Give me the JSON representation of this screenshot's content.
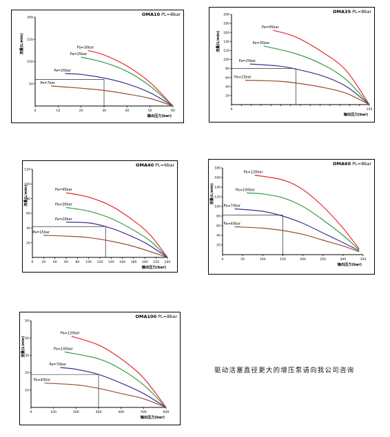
{
  "note": "驱动活塞直径更大的增压泵请向我公司咨询",
  "colors": {
    "red": "#e32a2a",
    "green": "#2f9b46",
    "blue": "#3b2e8c",
    "brown": "#9a4a2e"
  },
  "chart_data": [
    {
      "type": "line",
      "title": "OMA10",
      "subtitle": "PL=8bar",
      "xlabel": "输出压力(bar)",
      "ylabel": "流量(L/min)",
      "xlim": [
        0,
        60
      ],
      "ylim": [
        0,
        200
      ],
      "xticks": [
        "0",
        "10",
        "20",
        "30",
        "40",
        "50",
        "60"
      ],
      "yticks": [
        "50",
        "100",
        "150",
        "200"
      ],
      "series": [
        {
          "name": "Pa=30bar",
          "color": "red",
          "x": [
            23,
            30,
            40,
            50,
            60
          ],
          "y": [
            125,
            115,
            90,
            53,
            0
          ]
        },
        {
          "name": "Pa=25bar",
          "color": "green",
          "x": [
            20,
            30,
            40,
            50,
            60
          ],
          "y": [
            110,
            98,
            78,
            45,
            0
          ]
        },
        {
          "name": "Pa=20bar",
          "color": "blue",
          "x": [
            13,
            20,
            30,
            40,
            50,
            60
          ],
          "y": [
            73,
            71,
            63,
            50,
            30,
            0
          ]
        },
        {
          "name": "Pa=7bar",
          "color": "brown",
          "x": [
            7,
            20,
            30,
            40,
            50,
            60
          ],
          "y": [
            45,
            40,
            35,
            27,
            17,
            0
          ]
        }
      ],
      "guide": {
        "x": 30,
        "y": 60
      }
    },
    {
      "type": "line",
      "title": "OMA35",
      "subtitle": "PL=8bar",
      "xlabel": "输出压力(bar)",
      "ylabel": "流量(L/min)",
      "xlim": [
        0,
        150
      ],
      "ylim": [
        0,
        200
      ],
      "xticks": [
        "0",
        "",
        "",
        "",
        "",
        "",
        "",
        "",
        "",
        "",
        "",
        "",
        "",
        "",
        "150"
      ],
      "yticks": [
        "20",
        "40",
        "60",
        "80",
        "100",
        "120",
        "140",
        "160",
        "180",
        "200"
      ],
      "series": [
        {
          "name": "Pa=45bar",
          "color": "red",
          "x": [
            45,
            70,
            100,
            125,
            150
          ],
          "y": [
            165,
            150,
            115,
            75,
            0
          ]
        },
        {
          "name": "Pa=35bar",
          "color": "green",
          "x": [
            35,
            70,
            100,
            125,
            150
          ],
          "y": [
            130,
            113,
            88,
            55,
            0
          ]
        },
        {
          "name": "Pa=20bar",
          "color": "blue",
          "x": [
            20,
            50,
            70,
            100,
            125,
            150
          ],
          "y": [
            90,
            86,
            79,
            63,
            40,
            0
          ]
        },
        {
          "name": "Pa=15bar",
          "color": "brown",
          "x": [
            15,
            50,
            70,
            100,
            125,
            150
          ],
          "y": [
            54,
            52,
            48,
            38,
            25,
            0
          ]
        }
      ],
      "guide": {
        "x": 70,
        "y": 80
      }
    },
    {
      "type": "line",
      "title": "OMA40",
      "subtitle": "PL=6bar",
      "xlabel": "输出压力(bar)",
      "ylabel": "流量(L/min)",
      "xlim": [
        0,
        240
      ],
      "ylim": [
        0,
        120
      ],
      "xticks": [
        "0",
        "20",
        "40",
        "60",
        "80",
        "100",
        "120",
        "140",
        "160",
        "180",
        "200",
        "220",
        "240"
      ],
      "yticks": [
        "20",
        "40",
        "60",
        "80",
        "100",
        "120"
      ],
      "series": [
        {
          "name": "Pa=45bar",
          "color": "red",
          "x": [
            60,
            100,
            140,
            180,
            210,
            240
          ],
          "y": [
            88,
            82,
            70,
            50,
            30,
            0
          ]
        },
        {
          "name": "Pa=30bar",
          "color": "green",
          "x": [
            60,
            100,
            140,
            180,
            210,
            240
          ],
          "y": [
            68,
            63,
            53,
            37,
            22,
            0
          ]
        },
        {
          "name": "Pa=20bar",
          "color": "blue",
          "x": [
            60,
            100,
            130,
            160,
            200,
            240
          ],
          "y": [
            48,
            47,
            42,
            34,
            20,
            0
          ]
        },
        {
          "name": "Pa=15bar",
          "color": "brown",
          "x": [
            20,
            60,
            100,
            140,
            180,
            240
          ],
          "y": [
            30,
            29,
            27,
            22,
            15,
            0
          ]
        }
      ],
      "guide": {
        "x": 130,
        "y": 42
      }
    },
    {
      "type": "line",
      "title": "OMA60",
      "subtitle": "PL=8bar",
      "xlabel": "输出压力(bar)",
      "ylabel": "流量(L/min)",
      "xlim": [
        0,
        350
      ],
      "ylim": [
        0,
        180
      ],
      "xticks": [
        "0",
        "50",
        "100",
        "150",
        "200",
        "250",
        "300",
        "350"
      ],
      "yticks": [
        "20",
        "40",
        "60",
        "80",
        "100",
        "120",
        "140",
        "160",
        "180"
      ],
      "series": [
        {
          "name": "Pa=120bar",
          "color": "red",
          "x": [
            80,
            150,
            200,
            250,
            300,
            340
          ],
          "y": [
            165,
            155,
            135,
            100,
            55,
            12
          ]
        },
        {
          "name": "Pa=100bar",
          "color": "green",
          "x": [
            60,
            100,
            150,
            200,
            250,
            300,
            340
          ],
          "y": [
            128,
            126,
            118,
            100,
            72,
            40,
            10
          ]
        },
        {
          "name": "Pa=70bar",
          "color": "blue",
          "x": [
            30,
            100,
            150,
            200,
            250,
            300,
            340
          ],
          "y": [
            95,
            90,
            80,
            65,
            45,
            25,
            8
          ]
        },
        {
          "name": "Pa=40bar",
          "color": "brown",
          "x": [
            30,
            100,
            150,
            200,
            250,
            300,
            340
          ],
          "y": [
            58,
            55,
            50,
            42,
            30,
            18,
            6
          ]
        }
      ],
      "guide": {
        "x": 150,
        "y": 82
      }
    },
    {
      "type": "line",
      "title": "OMA100",
      "subtitle": "PL=8bar",
      "xlabel": "输出压力(bar)",
      "ylabel": "流量(L/min)",
      "xlim": [
        0,
        600
      ],
      "ylim": [
        0,
        50
      ],
      "xticks": [
        "0",
        "100",
        "200",
        "300",
        "400",
        "500",
        "600"
      ],
      "yticks": [
        "10",
        "20",
        "30",
        "40",
        "50"
      ],
      "series": [
        {
          "name": "Pa=120bar",
          "color": "red",
          "x": [
            180,
            300,
            400,
            500,
            600
          ],
          "y": [
            41,
            36,
            28,
            17,
            0
          ]
        },
        {
          "name": "Pa=100bar",
          "color": "green",
          "x": [
            150,
            300,
            400,
            500,
            600
          ],
          "y": [
            32,
            28,
            22,
            13,
            0
          ]
        },
        {
          "name": "Pa=70bar",
          "color": "blue",
          "x": [
            130,
            200,
            300,
            400,
            500,
            600
          ],
          "y": [
            23,
            22,
            19,
            14,
            8,
            0
          ]
        },
        {
          "name": "Pa=40bar",
          "color": "brown",
          "x": [
            60,
            200,
            300,
            400,
            500,
            600
          ],
          "y": [
            14,
            13,
            11,
            8,
            5,
            0
          ]
        }
      ],
      "guide": {
        "x": 300,
        "y": 19
      }
    }
  ]
}
